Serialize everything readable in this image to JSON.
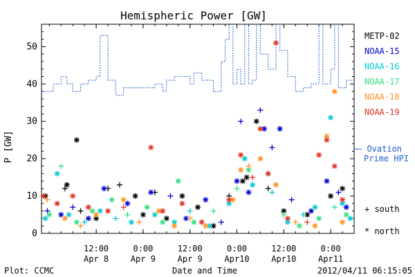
{
  "chart_data": {
    "type": "scatter",
    "title": "Hemispheric Power [GW]",
    "ylabel": "P [GW]",
    "xlabel": "Date and Time",
    "ylim": [
      0,
      56
    ],
    "yticks": [
      0,
      10,
      20,
      30,
      40,
      50
    ],
    "xlim": [
      "2012-04-07T22:00",
      "2012-04-11T06:00"
    ],
    "xticks": [
      {
        "t": "2012-04-08T12:00",
        "line1": "12:00",
        "line2": "Apr 8"
      },
      {
        "t": "2012-04-09T00:00",
        "line1": "0:00",
        "line2": "Apr 9"
      },
      {
        "t": "2012-04-09T12:00",
        "line1": "12:00",
        "line2": "Apr 9"
      },
      {
        "t": "2012-04-10T00:00",
        "line1": "0:00",
        "line2": "Apr10"
      },
      {
        "t": "2012-04-10T12:00",
        "line1": "12:00",
        "line2": "Apr10"
      },
      {
        "t": "2012-04-11T00:00",
        "line1": "0:00",
        "line2": "Apr11"
      }
    ],
    "grid": false,
    "legend_position": "right",
    "series": [
      {
        "name": "METP-02",
        "color": "#000000",
        "points": [
          [
            "2012-04-07T23:00",
            10,
            "*"
          ],
          [
            "2012-04-08T04:00",
            12,
            "+"
          ],
          [
            "2012-04-08T04:30",
            13,
            "*"
          ],
          [
            "2012-04-08T07:00",
            25,
            "*"
          ],
          [
            "2012-04-08T08:00",
            6,
            "+"
          ],
          [
            "2012-04-08T12:00",
            4,
            "*"
          ],
          [
            "2012-04-08T15:00",
            12,
            "+"
          ],
          [
            "2012-04-08T18:00",
            13,
            "+"
          ],
          [
            "2012-04-08T22:00",
            10,
            "*"
          ],
          [
            "2012-04-09T00:00",
            5,
            "*"
          ],
          [
            "2012-04-09T03:00",
            11,
            "+"
          ],
          [
            "2012-04-09T06:00",
            4,
            "*"
          ],
          [
            "2012-04-09T10:00",
            10,
            "*"
          ],
          [
            "2012-04-09T14:00",
            7,
            "*"
          ],
          [
            "2012-04-09T18:00",
            2,
            "*"
          ],
          [
            "2012-04-09T22:00",
            10,
            "+"
          ],
          [
            "2012-04-10T01:30",
            14,
            "*"
          ],
          [
            "2012-04-10T02:30",
            15,
            "*"
          ],
          [
            "2012-04-10T05:00",
            30,
            "*"
          ],
          [
            "2012-04-10T08:00",
            12,
            "+"
          ],
          [
            "2012-04-10T12:00",
            6,
            "*"
          ],
          [
            "2012-04-10T18:00",
            5,
            "*"
          ],
          [
            "2012-04-11T00:00",
            10,
            "*"
          ],
          [
            "2012-04-11T03:00",
            12,
            "*"
          ]
        ]
      },
      {
        "name": "NOAA-15",
        "color": "#0000d0",
        "points": [
          [
            "2012-04-07T23:30",
            6,
            "+"
          ],
          [
            "2012-04-08T03:00",
            5,
            "*"
          ],
          [
            "2012-04-08T06:00",
            7,
            "+"
          ],
          [
            "2012-04-08T10:00",
            4,
            "*"
          ],
          [
            "2012-04-08T14:00",
            12,
            "*"
          ],
          [
            "2012-04-08T20:00",
            8,
            "*"
          ],
          [
            "2012-04-09T02:00",
            11,
            "*"
          ],
          [
            "2012-04-09T07:00",
            10,
            "+"
          ],
          [
            "2012-04-09T11:00",
            4,
            "*"
          ],
          [
            "2012-04-09T16:00",
            9,
            "*"
          ],
          [
            "2012-04-09T20:00",
            3,
            "+"
          ],
          [
            "2012-04-10T00:00",
            14,
            "*"
          ],
          [
            "2012-04-10T01:00",
            30,
            "+"
          ],
          [
            "2012-04-10T03:00",
            11,
            "*"
          ],
          [
            "2012-04-10T06:00",
            33,
            "+"
          ],
          [
            "2012-04-10T07:00",
            28,
            "*"
          ],
          [
            "2012-04-10T09:00",
            23,
            "+"
          ],
          [
            "2012-04-10T11:00",
            28,
            "*"
          ],
          [
            "2012-04-10T14:00",
            9,
            "+"
          ],
          [
            "2012-04-10T19:00",
            6,
            "*"
          ],
          [
            "2012-04-10T23:00",
            14,
            "*"
          ],
          [
            "2012-04-11T02:00",
            11,
            "+"
          ],
          [
            "2012-04-11T04:00",
            7,
            "*"
          ]
        ]
      },
      {
        "name": "NOAA-16",
        "color": "#00c8d0",
        "points": [
          [
            "2012-04-07T23:00",
            4,
            "*"
          ],
          [
            "2012-04-08T02:00",
            16,
            "*"
          ],
          [
            "2012-04-08T05:00",
            5,
            "*"
          ],
          [
            "2012-04-08T09:00",
            3,
            "+"
          ],
          [
            "2012-04-08T13:00",
            6,
            "*"
          ],
          [
            "2012-04-08T17:00",
            4,
            "+"
          ],
          [
            "2012-04-08T21:00",
            3,
            "*"
          ],
          [
            "2012-04-09T03:00",
            5,
            "*"
          ],
          [
            "2012-04-09T08:00",
            3,
            "*"
          ],
          [
            "2012-04-09T12:00",
            6,
            "+"
          ],
          [
            "2012-04-09T17:00",
            2,
            "*"
          ],
          [
            "2012-04-09T22:00",
            8,
            "*"
          ],
          [
            "2012-04-10T02:00",
            20,
            "*"
          ],
          [
            "2012-04-10T04:00",
            13,
            "*"
          ],
          [
            "2012-04-10T09:00",
            11,
            "+"
          ],
          [
            "2012-04-10T13:00",
            3,
            "*"
          ],
          [
            "2012-04-10T17:00",
            5,
            "+"
          ],
          [
            "2012-04-10T20:00",
            7,
            "*"
          ],
          [
            "2012-04-11T00:00",
            31,
            "*"
          ],
          [
            "2012-04-11T03:00",
            8,
            "*"
          ],
          [
            "2012-04-11T05:00",
            4,
            "*"
          ]
        ]
      },
      {
        "name": "NOAA-17",
        "color": "#30e080",
        "points": [
          [
            "2012-04-08T00:00",
            5,
            "*"
          ],
          [
            "2012-04-08T03:00",
            18,
            "+"
          ],
          [
            "2012-04-08T07:00",
            3,
            "*"
          ],
          [
            "2012-04-08T11:00",
            6,
            "*"
          ],
          [
            "2012-04-08T16:00",
            9,
            "*"
          ],
          [
            "2012-04-08T20:00",
            5,
            "+"
          ],
          [
            "2012-04-09T01:00",
            7,
            "*"
          ],
          [
            "2012-04-09T05:00",
            3,
            "*"
          ],
          [
            "2012-04-09T09:00",
            14,
            "*"
          ],
          [
            "2012-04-09T13:00",
            3,
            "*"
          ],
          [
            "2012-04-09T18:00",
            6,
            "+"
          ],
          [
            "2012-04-10T00:00",
            12,
            "+"
          ],
          [
            "2012-04-10T03:00",
            17,
            "*"
          ],
          [
            "2012-04-10T08:00",
            16,
            "*"
          ],
          [
            "2012-04-10T12:00",
            5,
            "+"
          ],
          [
            "2012-04-10T16:00",
            2,
            "*"
          ],
          [
            "2012-04-10T21:00",
            4,
            "*"
          ],
          [
            "2012-04-11T01:00",
            7,
            "+"
          ],
          [
            "2012-04-11T04:00",
            5,
            "*"
          ]
        ]
      },
      {
        "name": "NOAA-18",
        "color": "#ff9020",
        "points": [
          [
            "2012-04-07T23:30",
            9,
            "+"
          ],
          [
            "2012-04-08T04:00",
            4,
            "*"
          ],
          [
            "2012-04-08T08:00",
            2,
            "+"
          ],
          [
            "2012-04-08T12:00",
            5,
            "*"
          ],
          [
            "2012-04-08T19:00",
            9,
            "*"
          ],
          [
            "2012-04-08T23:00",
            3,
            "+"
          ],
          [
            "2012-04-09T04:00",
            6,
            "*"
          ],
          [
            "2012-04-09T08:00",
            2,
            "*"
          ],
          [
            "2012-04-09T12:00",
            4,
            "+"
          ],
          [
            "2012-04-09T16:00",
            2,
            "*"
          ],
          [
            "2012-04-09T23:00",
            9,
            "*"
          ],
          [
            "2012-04-10T01:00",
            17,
            "*"
          ],
          [
            "2012-04-10T03:00",
            18,
            "+"
          ],
          [
            "2012-04-10T06:00",
            20,
            "*"
          ],
          [
            "2012-04-10T10:00",
            13,
            "*"
          ],
          [
            "2012-04-10T15:00",
            3,
            "+"
          ],
          [
            "2012-04-10T20:00",
            2,
            "*"
          ],
          [
            "2012-04-10T23:00",
            26,
            "*"
          ],
          [
            "2012-04-11T01:00",
            38,
            "*"
          ],
          [
            "2012-04-11T03:00",
            3,
            "*"
          ]
        ]
      },
      {
        "name": "NOAA-19",
        "color": "#e03020",
        "points": [
          [
            "2012-04-07T22:30",
            10,
            "*"
          ],
          [
            "2012-04-08T02:00",
            8,
            "*"
          ],
          [
            "2012-04-08T06:00",
            10,
            "*"
          ],
          [
            "2012-04-08T10:00",
            7,
            "*"
          ],
          [
            "2012-04-08T15:00",
            6,
            "*"
          ],
          [
            "2012-04-08T19:00",
            7,
            "+"
          ],
          [
            "2012-04-09T02:00",
            23,
            "*"
          ],
          [
            "2012-04-09T05:00",
            6,
            "*"
          ],
          [
            "2012-04-09T10:00",
            8,
            "*"
          ],
          [
            "2012-04-09T15:00",
            3,
            "*"
          ],
          [
            "2012-04-09T22:00",
            9,
            "*"
          ],
          [
            "2012-04-10T01:00",
            21,
            "*"
          ],
          [
            "2012-04-10T04:00",
            15,
            "+"
          ],
          [
            "2012-04-10T06:00",
            28,
            "*"
          ],
          [
            "2012-04-10T08:00",
            16,
            "*"
          ],
          [
            "2012-04-10T10:00",
            51,
            "*"
          ],
          [
            "2012-04-10T13:00",
            4,
            "*"
          ],
          [
            "2012-04-10T18:00",
            3,
            "+"
          ],
          [
            "2012-04-10T21:00",
            21,
            "*"
          ],
          [
            "2012-04-10T23:00",
            25,
            "*"
          ],
          [
            "2012-04-11T01:00",
            18,
            "*"
          ],
          [
            "2012-04-11T03:00",
            9,
            "*"
          ]
        ]
      }
    ],
    "ovation": {
      "name_line1": "— Ovation",
      "name_line2": "Prime HPI",
      "color": "#2060d0",
      "points": [
        [
          "2012-04-07T22:00",
          38
        ],
        [
          "2012-04-08T00:00",
          38
        ],
        [
          "2012-04-08T01:00",
          40
        ],
        [
          "2012-04-08T03:00",
          42
        ],
        [
          "2012-04-08T04:30",
          40
        ],
        [
          "2012-04-08T06:00",
          38
        ],
        [
          "2012-04-08T08:00",
          40
        ],
        [
          "2012-04-08T10:00",
          41
        ],
        [
          "2012-04-08T12:00",
          42
        ],
        [
          "2012-04-08T13:00",
          53
        ],
        [
          "2012-04-08T14:00",
          53
        ],
        [
          "2012-04-08T15:00",
          41
        ],
        [
          "2012-04-08T17:00",
          37
        ],
        [
          "2012-04-08T19:00",
          39
        ],
        [
          "2012-04-08T21:00",
          39
        ],
        [
          "2012-04-09T00:00",
          39
        ],
        [
          "2012-04-09T02:00",
          39
        ],
        [
          "2012-04-09T03:00",
          40
        ],
        [
          "2012-04-09T05:00",
          38
        ],
        [
          "2012-04-09T06:00",
          41
        ],
        [
          "2012-04-09T08:00",
          42
        ],
        [
          "2012-04-09T10:00",
          42
        ],
        [
          "2012-04-09T12:00",
          40
        ],
        [
          "2012-04-09T13:00",
          43
        ],
        [
          "2012-04-09T15:00",
          41
        ],
        [
          "2012-04-09T18:00",
          38
        ],
        [
          "2012-04-09T20:00",
          46
        ],
        [
          "2012-04-09T21:00",
          52
        ],
        [
          "2012-04-09T22:00",
          56
        ],
        [
          "2012-04-09T23:00",
          40
        ],
        [
          "2012-04-10T00:00",
          44
        ],
        [
          "2012-04-10T01:00",
          40
        ],
        [
          "2012-04-10T02:00",
          56
        ],
        [
          "2012-04-10T03:00",
          40
        ],
        [
          "2012-04-10T04:00",
          41
        ],
        [
          "2012-04-10T05:00",
          56
        ],
        [
          "2012-04-10T06:00",
          48
        ],
        [
          "2012-04-10T08:00",
          44
        ],
        [
          "2012-04-10T10:00",
          56
        ],
        [
          "2012-04-10T11:00",
          49
        ],
        [
          "2012-04-10T13:00",
          42
        ],
        [
          "2012-04-10T15:00",
          38
        ],
        [
          "2012-04-10T17:00",
          39
        ],
        [
          "2012-04-10T19:00",
          40
        ],
        [
          "2012-04-10T21:00",
          56
        ],
        [
          "2012-04-10T22:00",
          40
        ],
        [
          "2012-04-11T00:00",
          44
        ],
        [
          "2012-04-11T01:00",
          56
        ],
        [
          "2012-04-11T02:00",
          39
        ],
        [
          "2012-04-11T04:00",
          41
        ],
        [
          "2012-04-11T06:00",
          38
        ]
      ]
    },
    "symbol_key": [
      {
        "symbol": "+",
        "label": "south"
      },
      {
        "symbol": "*",
        "label": "north"
      }
    ]
  },
  "footer": {
    "plot_label": "Plot: CCMC",
    "timestamp": "2012/04/11 06:15:05"
  }
}
